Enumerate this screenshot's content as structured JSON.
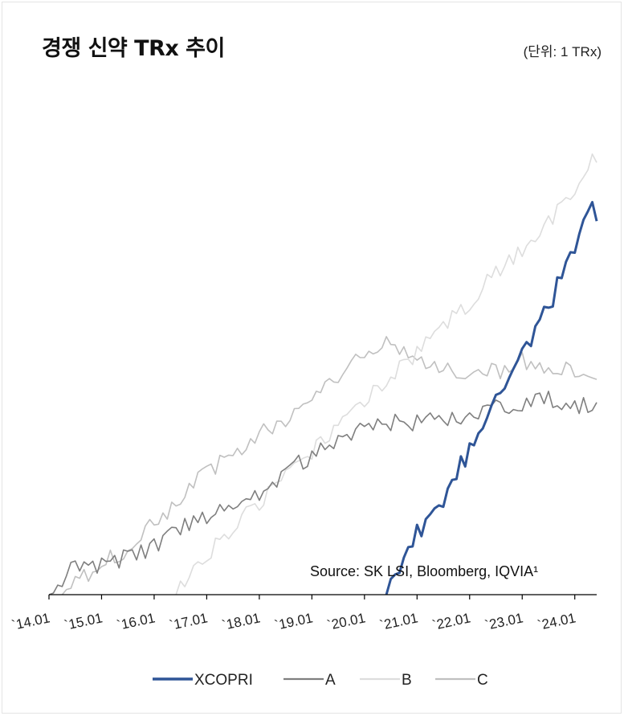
{
  "header": {
    "title": "경쟁 신약 TRx 추이",
    "unit": "(단위: 1 TRx)"
  },
  "source": "Source: SK LSI, Bloomberg, IQVIA¹",
  "chart_data": {
    "type": "line",
    "title": "경쟁 신약 TRx 추이",
    "xlabel": "",
    "ylabel": "",
    "x_start": "2014-01",
    "x_end": "2024-06",
    "x_ticks": [
      "`14.01",
      "`15.01",
      "`16.01",
      "`17.01",
      "`18.01",
      "`19.01",
      "`20.01",
      "`21.01",
      "`22.01",
      "`23.01",
      "`24.01"
    ],
    "ylim": [
      0,
      1
    ],
    "y_axis_shown": false,
    "grid": false,
    "legend_position": "bottom",
    "series": [
      {
        "name": "XCOPRI",
        "color": "#2f5597",
        "width": 3,
        "start": "2020-06",
        "points": [
          [
            "2020-06",
            0.0
          ],
          [
            "2021-01",
            0.13
          ],
          [
            "2021-07",
            0.21
          ],
          [
            "2022-01",
            0.31
          ],
          [
            "2022-07",
            0.44
          ],
          [
            "2023-01",
            0.51
          ],
          [
            "2023-07",
            0.62
          ],
          [
            "2024-01",
            0.74
          ],
          [
            "2024-05",
            0.86
          ],
          [
            "2024-06",
            0.8
          ]
        ]
      },
      {
        "name": "A",
        "color": "#7f7f7f",
        "width": 1.6,
        "start": "2014-01",
        "points": [
          [
            "2014-01",
            0.0
          ],
          [
            "2014-07",
            0.06
          ],
          [
            "2015-01",
            0.065
          ],
          [
            "2015-07",
            0.08
          ],
          [
            "2016-01",
            0.1
          ],
          [
            "2016-07",
            0.14
          ],
          [
            "2017-01",
            0.17
          ],
          [
            "2017-07",
            0.2
          ],
          [
            "2018-01",
            0.22
          ],
          [
            "2018-07",
            0.26
          ],
          [
            "2019-01",
            0.3
          ],
          [
            "2019-07",
            0.33
          ],
          [
            "2020-01",
            0.36
          ],
          [
            "2020-07",
            0.37
          ],
          [
            "2021-01",
            0.37
          ],
          [
            "2021-07",
            0.37
          ],
          [
            "2022-01",
            0.38
          ],
          [
            "2022-07",
            0.4
          ],
          [
            "2023-01",
            0.41
          ],
          [
            "2023-07",
            0.42
          ],
          [
            "2024-01",
            0.41
          ],
          [
            "2024-06",
            0.4
          ]
        ]
      },
      {
        "name": "B",
        "color": "#dddddd",
        "width": 1.6,
        "start": "2016-06",
        "points": [
          [
            "2016-06",
            0.0
          ],
          [
            "2017-01",
            0.09
          ],
          [
            "2017-07",
            0.14
          ],
          [
            "2018-01",
            0.2
          ],
          [
            "2018-07",
            0.26
          ],
          [
            "2019-01",
            0.31
          ],
          [
            "2019-07",
            0.36
          ],
          [
            "2020-01",
            0.42
          ],
          [
            "2020-07",
            0.47
          ],
          [
            "2021-01",
            0.52
          ],
          [
            "2021-07",
            0.58
          ],
          [
            "2022-01",
            0.63
          ],
          [
            "2022-07",
            0.69
          ],
          [
            "2023-01",
            0.74
          ],
          [
            "2023-07",
            0.8
          ],
          [
            "2024-01",
            0.86
          ],
          [
            "2024-05",
            0.95
          ],
          [
            "2024-06",
            0.91
          ]
        ]
      },
      {
        "name": "C",
        "color": "#c0c0c0",
        "width": 1.6,
        "start": "2014-04",
        "points": [
          [
            "2014-04",
            0.0
          ],
          [
            "2015-01",
            0.07
          ],
          [
            "2015-07",
            0.1
          ],
          [
            "2016-01",
            0.15
          ],
          [
            "2016-07",
            0.21
          ],
          [
            "2017-01",
            0.26
          ],
          [
            "2017-07",
            0.3
          ],
          [
            "2018-01",
            0.34
          ],
          [
            "2018-07",
            0.38
          ],
          [
            "2019-01",
            0.43
          ],
          [
            "2019-07",
            0.47
          ],
          [
            "2020-01",
            0.51
          ],
          [
            "2020-06",
            0.55
          ],
          [
            "2020-09",
            0.53
          ],
          [
            "2021-01",
            0.51
          ],
          [
            "2021-07",
            0.49
          ],
          [
            "2022-01",
            0.48
          ],
          [
            "2022-07",
            0.48
          ],
          [
            "2023-01",
            0.5
          ],
          [
            "2023-07",
            0.49
          ],
          [
            "2024-01",
            0.48
          ],
          [
            "2024-06",
            0.45
          ]
        ]
      }
    ]
  }
}
